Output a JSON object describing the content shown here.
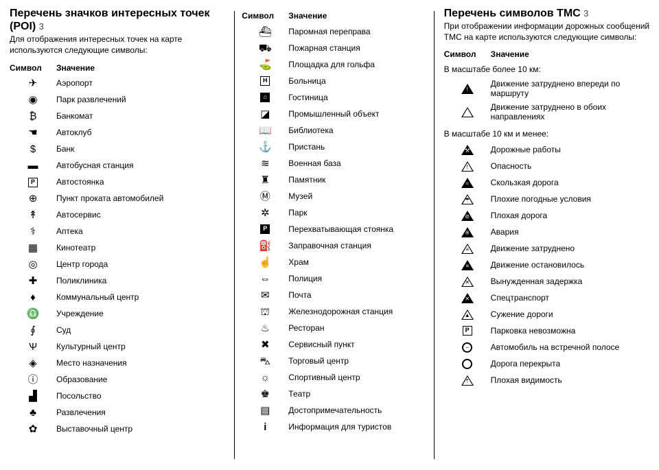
{
  "col1": {
    "title": "Перечень значков интересных точек (POI)",
    "section_num": "3",
    "subtitle": "Для отображения интересных точек на карте используются следующие символы:",
    "header_symbol": "Символ",
    "header_value": "Значение",
    "items": [
      {
        "glyph": "✈",
        "label": "Аэропорт"
      },
      {
        "glyph": "◉",
        "label": "Парк развлечений"
      },
      {
        "glyph": "₿",
        "label": "Банкомат"
      },
      {
        "glyph": "☚",
        "label": "Автоклуб"
      },
      {
        "glyph": "$",
        "label": "Банк"
      },
      {
        "glyph": "▬",
        "label": "Автобусная станция"
      },
      {
        "glyph": "P",
        "box": true,
        "label": "Автостоянка"
      },
      {
        "glyph": "⊕",
        "label": "Пункт проката автомобилей"
      },
      {
        "glyph": "↟",
        "label": "Автосервис"
      },
      {
        "glyph": "⚕",
        "label": "Аптека"
      },
      {
        "glyph": "▦",
        "label": "Кинотеатр"
      },
      {
        "glyph": "◎",
        "label": "Центр города"
      },
      {
        "glyph": "✚",
        "label": "Поликлиника"
      },
      {
        "glyph": "♦",
        "label": "Коммунальный центр"
      },
      {
        "glyph": "♎",
        "label": "Учреждение"
      },
      {
        "glyph": "∮",
        "label": "Суд"
      },
      {
        "glyph": "Ѱ",
        "label": "Культурный центр"
      },
      {
        "glyph": "◈",
        "label": "Место назначения"
      },
      {
        "glyph": "ⓘ",
        "label": "Образование"
      },
      {
        "glyph": "▟",
        "label": "Посольство"
      },
      {
        "glyph": "♣",
        "label": "Развлечения"
      },
      {
        "glyph": "✿",
        "label": "Выставочный центр"
      }
    ]
  },
  "col2": {
    "header_symbol": "Символ",
    "header_value": "Значение",
    "items": [
      {
        "glyph": "⛴",
        "label": "Паромная переправа"
      },
      {
        "glyph": "⛟",
        "label": "Пожарная станция"
      },
      {
        "glyph": "⛳",
        "label": "Площадка для гольфа"
      },
      {
        "glyph": "H",
        "box": true,
        "label": "Больница"
      },
      {
        "glyph": "⌂",
        "filledbox": true,
        "label": "Гостиница"
      },
      {
        "glyph": "◪",
        "label": "Промышленный объект"
      },
      {
        "glyph": "📖",
        "label": "Библиотека"
      },
      {
        "glyph": "⚓",
        "label": "Пристань"
      },
      {
        "glyph": "≋",
        "label": "Военная база"
      },
      {
        "glyph": "♜",
        "label": "Памятник"
      },
      {
        "glyph": "Ⓜ",
        "label": "Музей"
      },
      {
        "glyph": "✲",
        "label": "Парк"
      },
      {
        "glyph": "P",
        "filledbox": true,
        "label": "Перехватывающая стоянка"
      },
      {
        "glyph": "⛽",
        "label": "Заправочная станция"
      },
      {
        "glyph": "☝",
        "label": "Храм"
      },
      {
        "glyph": "⇔",
        "label": "Полиция"
      },
      {
        "glyph": "✉",
        "label": "Почта"
      },
      {
        "glyph": "⛫",
        "label": "Железнодорожная станция"
      },
      {
        "glyph": "♨",
        "label": "Ресторан"
      },
      {
        "glyph": "✖",
        "label": "Сервисный пункт"
      },
      {
        "glyph": "⛍",
        "label": "Торговый центр"
      },
      {
        "glyph": "☼",
        "label": "Спортивный центр"
      },
      {
        "glyph": "♚",
        "label": "Театр"
      },
      {
        "glyph": "▤",
        "label": "Достопримечательность"
      },
      {
        "glyph": "i",
        "bold": true,
        "label": "Информация для туристов"
      }
    ]
  },
  "col3": {
    "title": "Перечень символов ТМС",
    "section_num": "3",
    "subtitle": "При отображении информации дорожных сообщений ТМС на карте используются следующие символы:",
    "header_symbol": "Символ",
    "header_value": "Значение",
    "group1_title": "В масштабе более 10 км:",
    "group1_items": [
      {
        "sym": "tri",
        "filled": true,
        "mark": "!",
        "label": "Движение затруднено впереди по маршруту"
      },
      {
        "sym": "tri",
        "mark": "",
        "label": "Движение затруднено в обоих направлениях"
      }
    ],
    "group2_title": "В масштабе 10 км и менее:",
    "group2_items": [
      {
        "sym": "tri",
        "filled": true,
        "mark": "⚒",
        "label": "Дорожные работы"
      },
      {
        "sym": "tri",
        "mark": "!",
        "label": "Опасность"
      },
      {
        "sym": "tri",
        "filled": true,
        "mark": "≈",
        "label": "Скользкая дорога"
      },
      {
        "sym": "tri",
        "mark": "☂",
        "label": "Плохие погодные условия"
      },
      {
        "sym": "tri",
        "filled": true,
        "mark": "⊘",
        "label": "Плохая дорога"
      },
      {
        "sym": "tri",
        "filled": true,
        "mark": "※",
        "label": "Авария"
      },
      {
        "sym": "tri",
        "mark": "≡",
        "label": "Движение затруднено"
      },
      {
        "sym": "tri",
        "filled": true,
        "mark": "≡",
        "label": "Движение остановилось"
      },
      {
        "sym": "tri",
        "mark": "✕",
        "label": "Вынужденная задержка"
      },
      {
        "sym": "tri",
        "filled": true,
        "mark": "✕",
        "label": "Спецтранспорт"
      },
      {
        "sym": "tri",
        "mark": "▲",
        "label": "Сужение дороги"
      },
      {
        "sym": "sq",
        "mark": "P",
        "label": "Парковка невозможна"
      },
      {
        "sym": "circ",
        "mark": "–",
        "label": "Автомобиль на встречной полосе"
      },
      {
        "sym": "circ",
        "mark": "",
        "label": "Дорога перекрыта"
      },
      {
        "sym": "tri",
        "mark": "⇡",
        "label": "Плохая видимость"
      }
    ]
  }
}
